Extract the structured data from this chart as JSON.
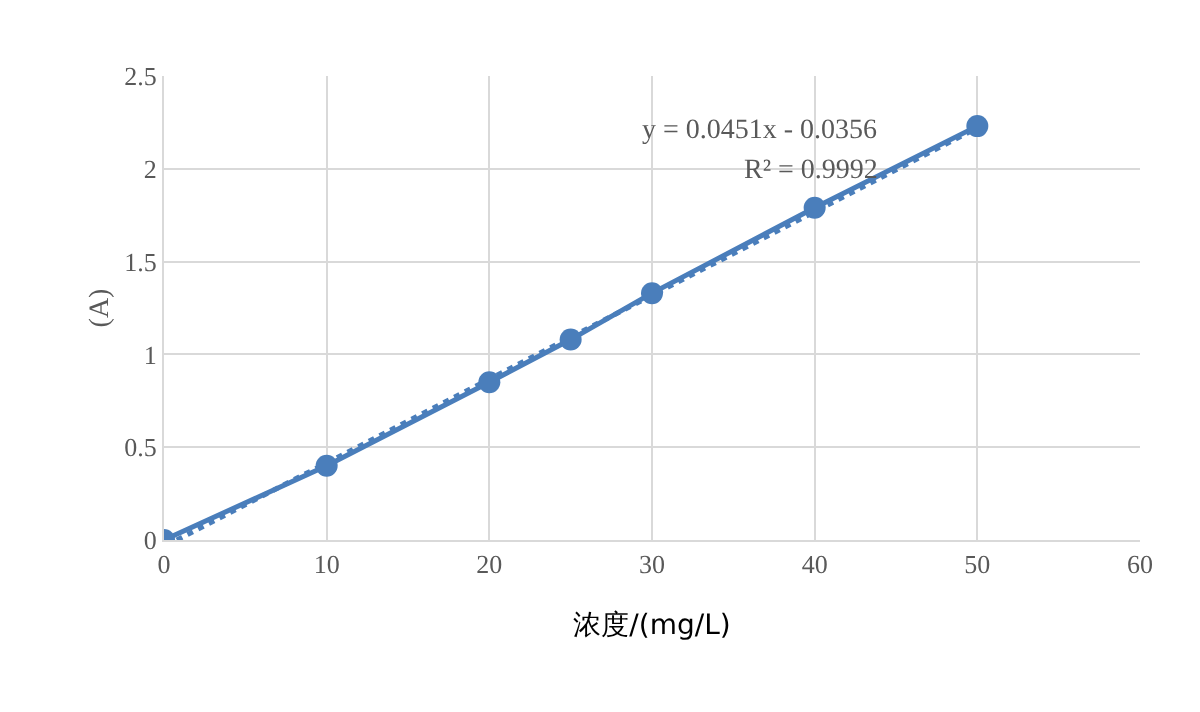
{
  "chart_data": {
    "type": "line",
    "xlabel": "浓度/(mg/L)",
    "ylabel": "(A)",
    "x": [
      0,
      10,
      20,
      25,
      30,
      40,
      50
    ],
    "series": [
      {
        "color": "#4a7ebb",
        "values": [
          0,
          0.4,
          0.85,
          1.08,
          1.33,
          1.79,
          2.23
        ]
      },
      {
        "type": "line",
        "color": "#4a7ebb",
        "x": [
          0.79,
          50
        ],
        "values": [
          0,
          2.22
        ],
        "marker": "none",
        "line_style": "dotted"
      }
    ],
    "annotations": [
      "y = 0.0451x - 0.0356",
      "R² = 0.9992"
    ],
    "xlim": [
      0,
      60
    ],
    "xticks": [
      0,
      10,
      20,
      30,
      40,
      50,
      60
    ],
    "ylim": [
      0,
      2.5
    ],
    "yticks": [
      0,
      0.5,
      1,
      1.5,
      2,
      2.5
    ],
    "grid": true,
    "marker": "circle",
    "line_style": "solid"
  }
}
